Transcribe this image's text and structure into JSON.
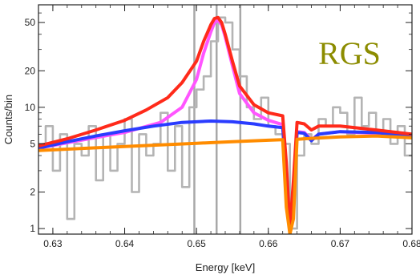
{
  "chart_data": {
    "type": "line",
    "title": "",
    "xlabel": "Energy [keV]",
    "ylabel": "Counts/bin",
    "xlim": [
      0.628,
      0.68
    ],
    "ylim": [
      0.9,
      70
    ],
    "yscale": "log",
    "grid": false,
    "legend": "none",
    "annotation": "RGS",
    "annotation_color": "#8c8c00",
    "x_ticks": [
      0.63,
      0.64,
      0.65,
      0.66,
      0.67,
      0.68
    ],
    "x_tick_labels": [
      "0.63",
      "0.64",
      "0.65",
      "0.66",
      "0.67",
      "0.68"
    ],
    "y_ticks": [
      1,
      2,
      5,
      10,
      20,
      50
    ],
    "y_tick_labels": [
      "1",
      "2",
      "5",
      "10",
      "20",
      "50"
    ],
    "vertical_lines": [
      0.6497,
      0.6528,
      0.6561
    ],
    "series": [
      {
        "color": "#b4b4b4",
        "style": "step",
        "x": [
          0.628,
          0.629,
          0.63,
          0.631,
          0.632,
          0.633,
          0.634,
          0.635,
          0.636,
          0.637,
          0.638,
          0.639,
          0.64,
          0.641,
          0.642,
          0.643,
          0.644,
          0.645,
          0.646,
          0.647,
          0.648,
          0.649,
          0.65,
          0.651,
          0.652,
          0.653,
          0.654,
          0.655,
          0.656,
          0.657,
          0.658,
          0.659,
          0.66,
          0.661,
          0.662,
          0.663,
          0.664,
          0.665,
          0.666,
          0.667,
          0.668,
          0.669,
          0.67,
          0.671,
          0.672,
          0.673,
          0.674,
          0.675,
          0.676,
          0.677,
          0.678,
          0.679
        ],
        "y": [
          5,
          7,
          3,
          6,
          1.2,
          5,
          4,
          7,
          2.5,
          6,
          3,
          5,
          8,
          2,
          6,
          4,
          5,
          9,
          3,
          7,
          2.2,
          10,
          14,
          18,
          35,
          55,
          50,
          30,
          18,
          10,
          8,
          12,
          7,
          6,
          5,
          1,
          4,
          6,
          5,
          8,
          7,
          10,
          9,
          6,
          12,
          7,
          9,
          6,
          8,
          5,
          7,
          4
        ]
      },
      {
        "color": "#ff55ff",
        "style": "line",
        "x": [
          0.628,
          0.635,
          0.64,
          0.645,
          0.648,
          0.65,
          0.651,
          0.652,
          0.6525,
          0.653,
          0.6535,
          0.654,
          0.655,
          0.656,
          0.658,
          0.66,
          0.662,
          0.6625,
          0.663,
          0.6635,
          0.664,
          0.665,
          0.666,
          0.667,
          0.67,
          0.675,
          0.68
        ],
        "y": [
          4.6,
          5.5,
          6.2,
          7.5,
          10,
          17,
          28,
          42,
          50,
          52,
          48,
          38,
          22,
          13,
          9,
          7.8,
          7.2,
          3,
          0.9,
          2,
          6.3,
          6.2,
          5.4,
          6,
          6.3,
          6.1,
          5.7
        ]
      },
      {
        "color": "#2a3cff",
        "style": "line",
        "x": [
          0.628,
          0.632,
          0.636,
          0.64,
          0.644,
          0.648,
          0.652,
          0.655,
          0.658,
          0.66,
          0.662,
          0.6625,
          0.663,
          0.6635,
          0.664,
          0.665,
          0.666,
          0.667,
          0.67,
          0.675,
          0.68
        ],
        "y": [
          4.6,
          5.2,
          5.8,
          6.4,
          7.0,
          7.5,
          7.7,
          7.6,
          7.3,
          7.0,
          6.8,
          3,
          0.9,
          2,
          6.2,
          6.1,
          5.3,
          6,
          6.3,
          6.2,
          5.8
        ]
      },
      {
        "color": "#ff2a1a",
        "style": "line",
        "x": [
          0.628,
          0.632,
          0.636,
          0.64,
          0.643,
          0.646,
          0.648,
          0.65,
          0.651,
          0.652,
          0.6525,
          0.653,
          0.6535,
          0.654,
          0.655,
          0.656,
          0.658,
          0.66,
          0.662,
          0.6625,
          0.663,
          0.6635,
          0.664,
          0.665,
          0.666,
          0.667,
          0.67,
          0.675,
          0.68
        ],
        "y": [
          4.8,
          5.5,
          6.5,
          7.8,
          9.5,
          12,
          16,
          24,
          35,
          48,
          54,
          55,
          50,
          40,
          24,
          15,
          10.5,
          9,
          8.5,
          3.5,
          1,
          2.5,
          7.5,
          7.3,
          6.5,
          7,
          7,
          6.5,
          6
        ]
      },
      {
        "color": "#ff8c00",
        "style": "line",
        "x": [
          0.628,
          0.635,
          0.64,
          0.645,
          0.65,
          0.655,
          0.66,
          0.662,
          0.6625,
          0.663,
          0.6635,
          0.664,
          0.665,
          0.67,
          0.675,
          0.68
        ],
        "y": [
          4.4,
          4.6,
          4.75,
          4.9,
          5.05,
          5.2,
          5.35,
          5.4,
          1.5,
          0.9,
          1.2,
          5.45,
          5.5,
          5.7,
          5.8,
          5.6
        ]
      }
    ]
  }
}
